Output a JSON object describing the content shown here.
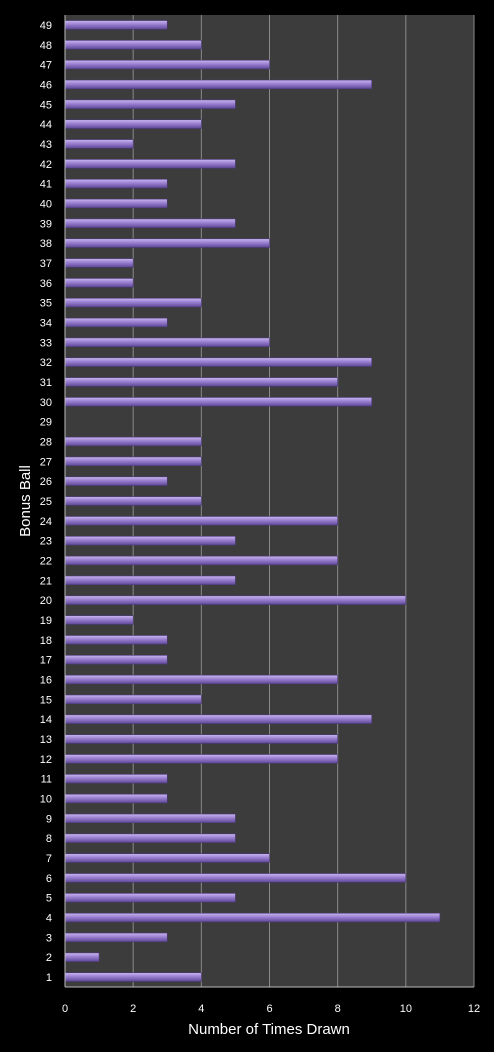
{
  "chart_data": {
    "type": "bar",
    "orientation": "horizontal",
    "xlabel": "Number of Times Drawn",
    "ylabel": "Bonus Ball",
    "xlim": [
      0,
      12
    ],
    "xticks": [
      0,
      2,
      4,
      6,
      8,
      10,
      12
    ],
    "grid": true,
    "legend": "none",
    "colors": {
      "background": "#000000",
      "plot_area": "#3c3c3c",
      "bar": "#9a7fd0",
      "grid": "#8a8a8a",
      "text": "#ffffff"
    },
    "categories": [
      "1",
      "2",
      "3",
      "4",
      "5",
      "6",
      "7",
      "8",
      "9",
      "10",
      "11",
      "12",
      "13",
      "14",
      "15",
      "16",
      "17",
      "18",
      "19",
      "20",
      "21",
      "22",
      "23",
      "24",
      "25",
      "26",
      "27",
      "28",
      "29",
      "30",
      "31",
      "32",
      "33",
      "34",
      "35",
      "36",
      "37",
      "38",
      "39",
      "40",
      "41",
      "42",
      "43",
      "44",
      "45",
      "46",
      "47",
      "48",
      "49"
    ],
    "values": [
      4,
      1,
      3,
      11,
      5,
      10,
      6,
      5,
      5,
      3,
      3,
      8,
      8,
      9,
      4,
      8,
      3,
      3,
      2,
      10,
      5,
      8,
      5,
      8,
      4,
      3,
      4,
      4,
      0,
      9,
      8,
      9,
      6,
      3,
      4,
      2,
      2,
      6,
      5,
      3,
      3,
      5,
      2,
      4,
      5,
      9,
      6,
      4,
      3
    ]
  }
}
